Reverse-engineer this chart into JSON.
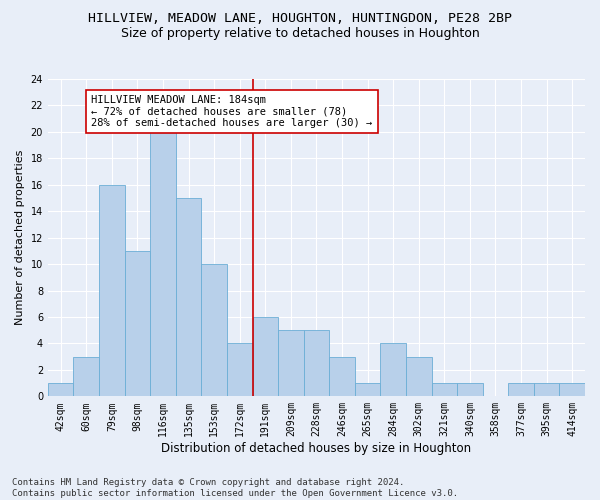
{
  "title1": "HILLVIEW, MEADOW LANE, HOUGHTON, HUNTINGDON, PE28 2BP",
  "title2": "Size of property relative to detached houses in Houghton",
  "xlabel": "Distribution of detached houses by size in Houghton",
  "ylabel": "Number of detached properties",
  "categories": [
    "42sqm",
    "60sqm",
    "79sqm",
    "98sqm",
    "116sqm",
    "135sqm",
    "153sqm",
    "172sqm",
    "191sqm",
    "209sqm",
    "228sqm",
    "246sqm",
    "265sqm",
    "284sqm",
    "302sqm",
    "321sqm",
    "340sqm",
    "358sqm",
    "377sqm",
    "395sqm",
    "414sqm"
  ],
  "values": [
    1,
    3,
    16,
    11,
    20,
    15,
    10,
    4,
    6,
    5,
    5,
    3,
    1,
    4,
    3,
    1,
    1,
    0,
    1,
    1,
    1
  ],
  "bar_color": "#b8d0ea",
  "bar_edge_color": "#6baed6",
  "vline_x": 7.5,
  "vline_color": "#cc0000",
  "annotation_text": "HILLVIEW MEADOW LANE: 184sqm\n← 72% of detached houses are smaller (78)\n28% of semi-detached houses are larger (30) →",
  "annotation_box_color": "#ffffff",
  "annotation_box_edge": "#cc0000",
  "ylim": [
    0,
    24
  ],
  "yticks": [
    0,
    2,
    4,
    6,
    8,
    10,
    12,
    14,
    16,
    18,
    20,
    22,
    24
  ],
  "footnote": "Contains HM Land Registry data © Crown copyright and database right 2024.\nContains public sector information licensed under the Open Government Licence v3.0.",
  "bg_color": "#e8eef8",
  "grid_color": "#ffffff",
  "title1_fontsize": 9.5,
  "title2_fontsize": 9.0,
  "xlabel_fontsize": 8.5,
  "ylabel_fontsize": 8.0,
  "tick_fontsize": 7.0,
  "annot_fontsize": 7.5,
  "footnote_fontsize": 6.5
}
